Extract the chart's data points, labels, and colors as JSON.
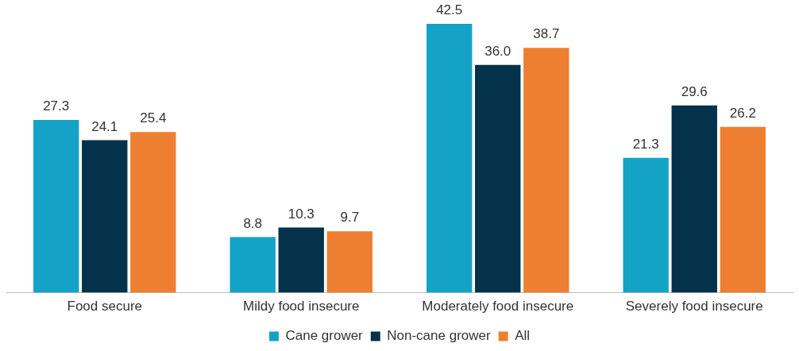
{
  "chart_data": {
    "type": "bar",
    "categories": [
      "Food secure",
      "Mildy food insecure",
      "Moderately food insecure",
      "Severely food insecure"
    ],
    "series": [
      {
        "name": "Cane grower",
        "color": "#14a3c7",
        "values": [
          27.3,
          8.8,
          42.5,
          21.3
        ],
        "value_labels": [
          "27.3",
          "8.8",
          "42.5",
          "21.3"
        ]
      },
      {
        "name": "Non-cane grower",
        "color": "#04324a",
        "values": [
          24.1,
          10.3,
          36.0,
          29.6
        ],
        "value_labels": [
          "24.1",
          "10.3",
          "36.0",
          "29.6"
        ]
      },
      {
        "name": "All",
        "color": "#ef7f30",
        "values": [
          25.4,
          9.7,
          38.7,
          26.2
        ],
        "value_labels": [
          "25.4",
          "9.7",
          "38.7",
          "26.2"
        ]
      }
    ],
    "grid": false,
    "legend": "bottom"
  }
}
